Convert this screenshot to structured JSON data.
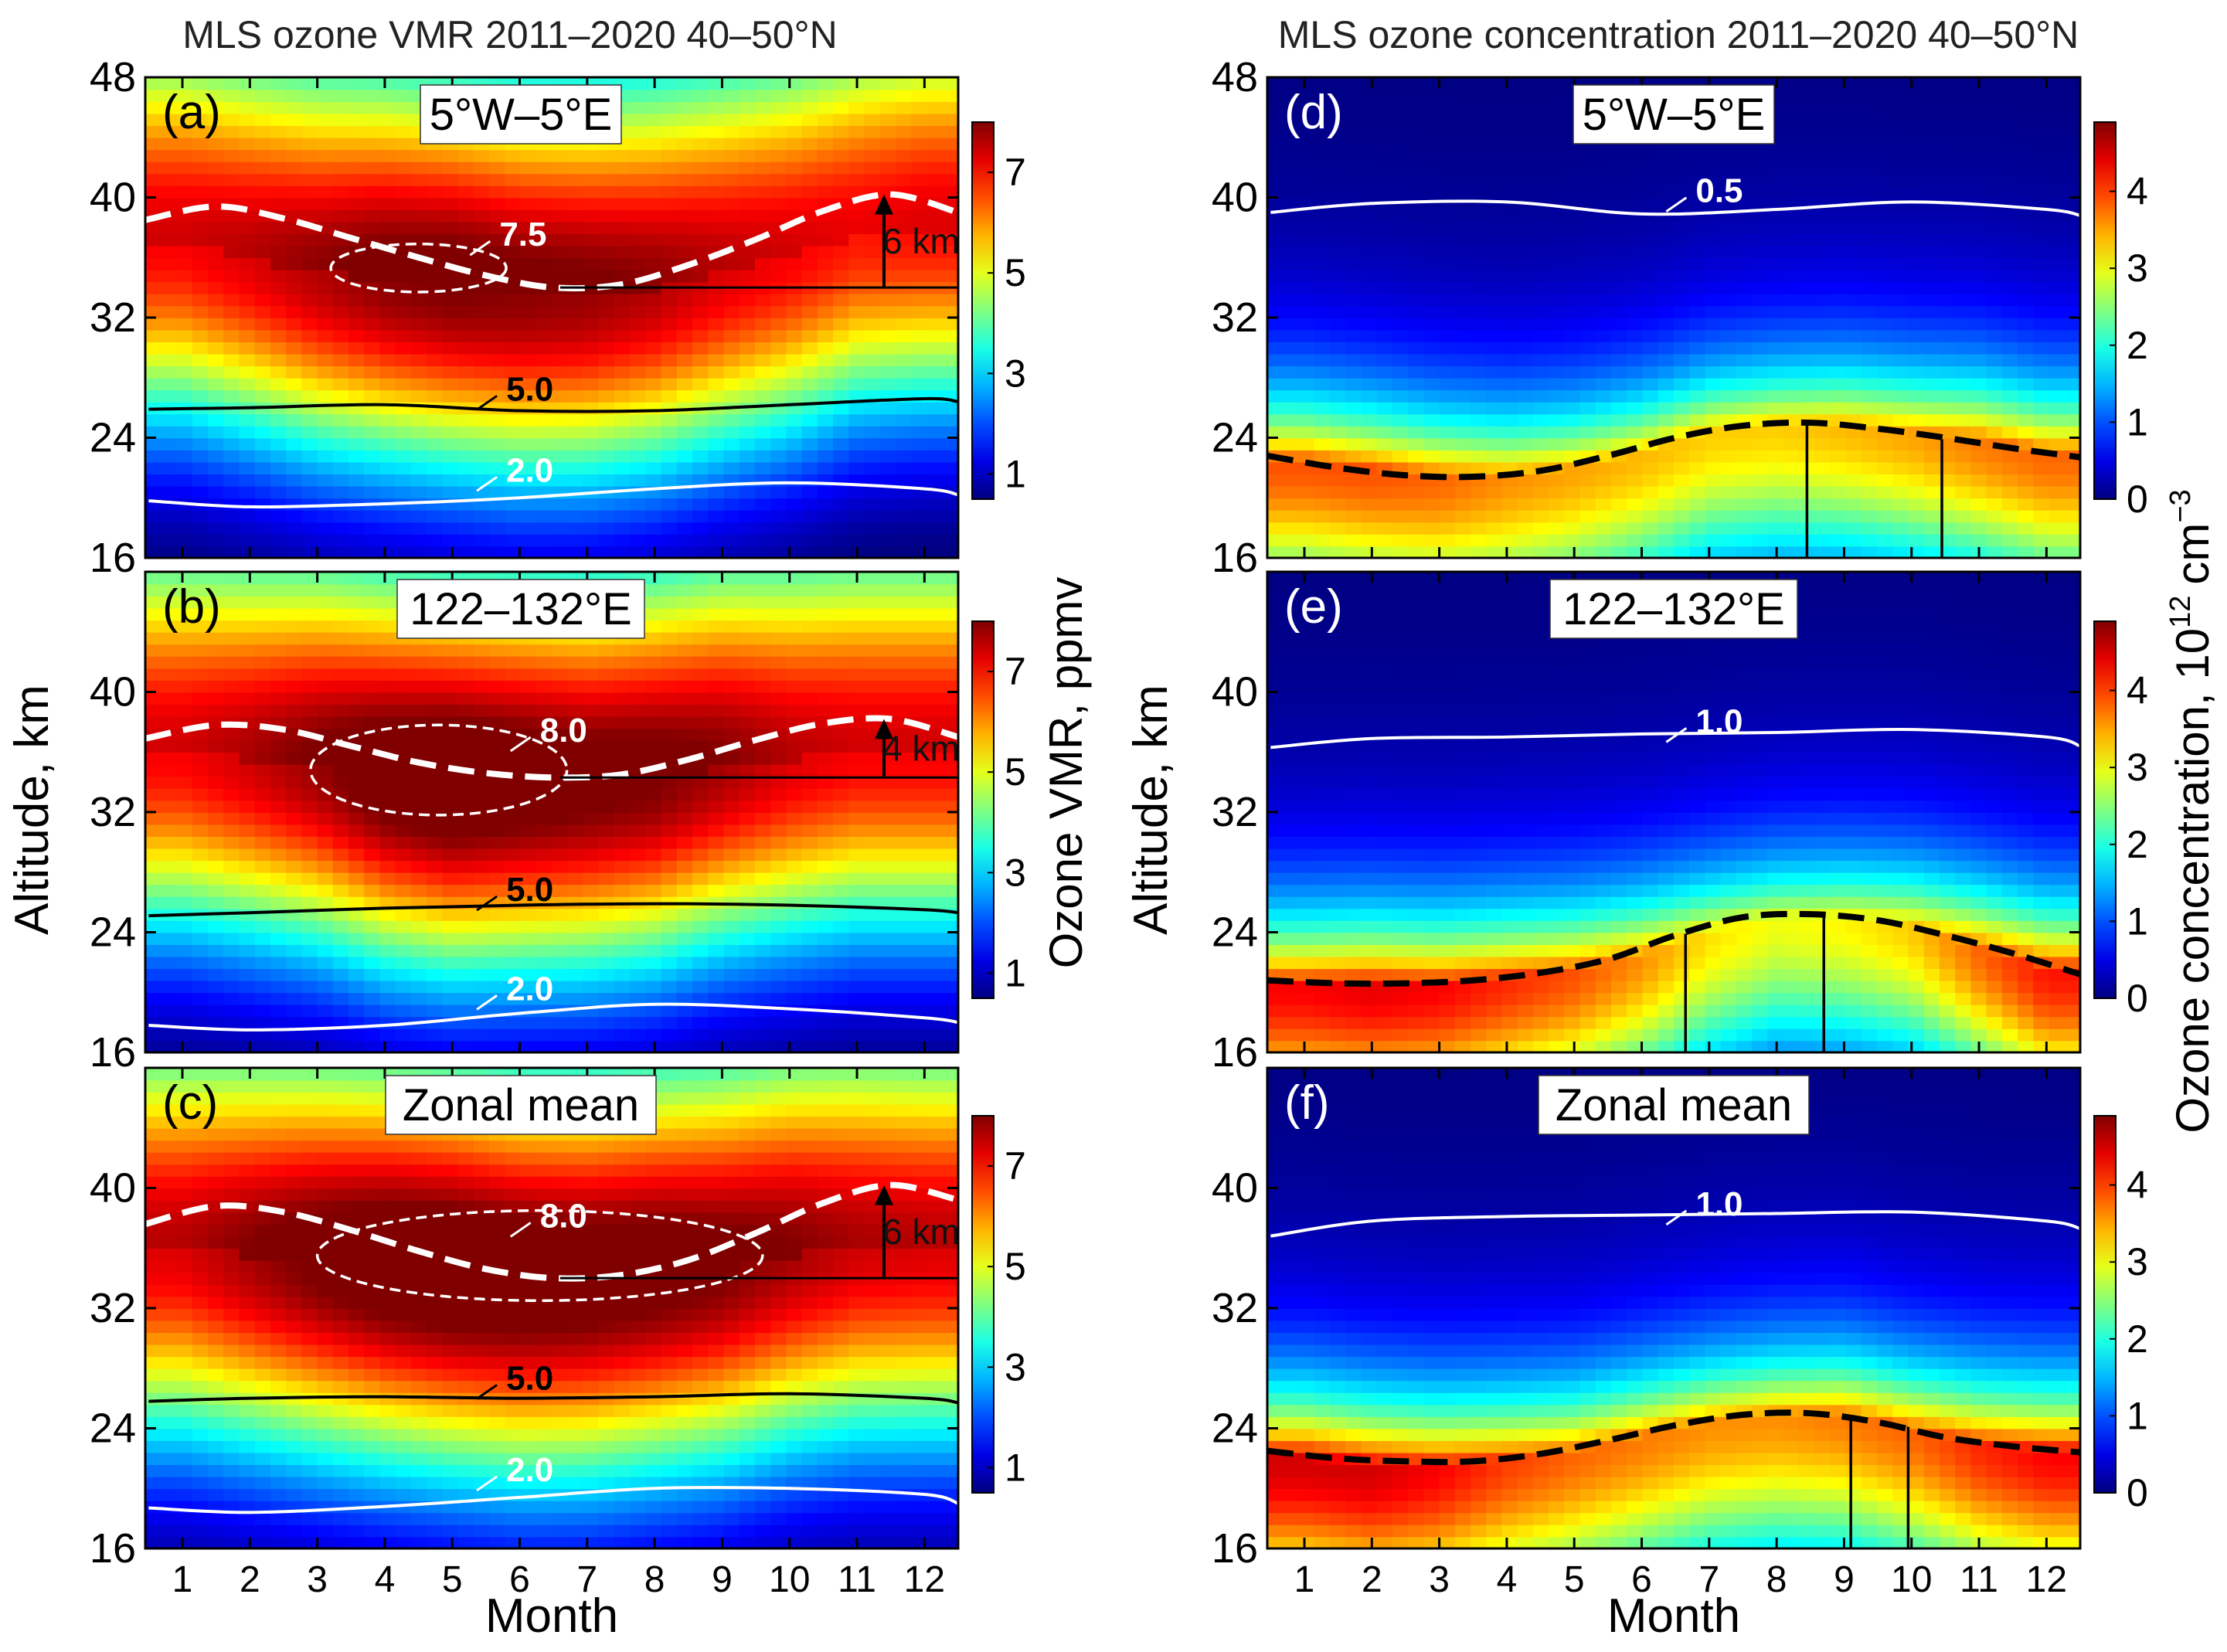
{
  "figure": {
    "left_title": "MLS ozone VMR  2011–2020  40–50°N",
    "right_title": "MLS ozone concentration 2011–2020 40–50°N",
    "left_ylabel": "Altitude, km",
    "right_ylabel": "Altitude, km",
    "left_xlabel": "Month",
    "right_xlabel": "Month",
    "left_cbar_label": "Ozone VMR, ppmv",
    "right_cbar_label": "Ozone concentration, 10",
    "right_cbar_exp": "12",
    "right_cbar_unit": "cm",
    "right_cbar_unit_exp": "−3"
  },
  "chart_data": [
    {
      "type": "heatmap",
      "panel": "(a)",
      "region": "5°W–5°E",
      "variable": "Ozone VMR",
      "unit": "ppmv",
      "xlabel": "Month",
      "ylabel": "Altitude, km",
      "xlim": [
        0.45,
        12.5
      ],
      "ylim": [
        16,
        48
      ],
      "xticks": [
        1,
        2,
        3,
        4,
        5,
        6,
        7,
        8,
        9,
        10,
        11,
        12
      ],
      "yticks": [
        16,
        24,
        32,
        40,
        48
      ],
      "colorbar": {
        "min": 0.5,
        "max": 8.0,
        "ticks": [
          1,
          3,
          5,
          7
        ]
      },
      "field": {
        "kind": "vmr",
        "peak_alt": [
          37,
          36,
          35,
          34.5,
          34,
          33.5,
          33.5,
          34,
          35,
          36,
          37.5,
          38
        ],
        "peak_value": [
          7.0,
          7.2,
          7.5,
          7.8,
          7.9,
          7.8,
          7.7,
          7.5,
          7.2,
          7.0,
          6.8,
          6.9
        ],
        "width": 9
      },
      "contours": [
        {
          "label": "7.5",
          "color": "#ffffff",
          "style": "dashed",
          "kind": "closed",
          "center": [
            4.5,
            35.3
          ],
          "radii": [
            1.3,
            1.6
          ],
          "label_at": [
            5.7,
            37.5
          ]
        },
        {
          "label": "5.0",
          "color": "#000000",
          "style": "solid",
          "x": [
            0.5,
            2,
            4,
            6,
            8,
            10,
            12,
            12.5
          ],
          "y": [
            25.9,
            26.0,
            26.2,
            25.8,
            25.8,
            26.2,
            26.6,
            26.4
          ],
          "label_at": [
            5.8,
            27.2
          ]
        },
        {
          "label": "2.0",
          "color": "#ffffff",
          "style": "solid",
          "x": [
            0.5,
            2,
            4,
            6,
            8,
            10,
            12,
            12.5
          ],
          "y": [
            19.8,
            19.4,
            19.6,
            20.0,
            20.6,
            21.0,
            20.6,
            20.2
          ],
          "label_at": [
            5.8,
            21.8
          ]
        }
      ],
      "max_line": {
        "x": [
          0.45,
          1.5,
          2.5,
          3.5,
          4.5,
          5.5,
          6.5,
          7.5,
          8.5,
          9.5,
          10.5,
          11.5,
          12.5
        ],
        "y": [
          38.5,
          39.4,
          38.6,
          37.3,
          36.0,
          34.8,
          34.0,
          34.2,
          35.5,
          37.2,
          39.1,
          40.2,
          39.0
        ]
      },
      "reference_line": {
        "y": 34.0,
        "x_from": 6.6,
        "x_to": 12.5
      },
      "arrow": {
        "x": 11.4,
        "from": 34.0,
        "to": 40.2,
        "label": "6 km"
      }
    },
    {
      "type": "heatmap",
      "panel": "(b)",
      "region": "122–132°E",
      "variable": "Ozone VMR",
      "unit": "ppmv",
      "xlabel": "Month",
      "ylabel": "Altitude, km",
      "xlim": [
        0.45,
        12.5
      ],
      "ylim": [
        16,
        48
      ],
      "xticks": [
        1,
        2,
        3,
        4,
        5,
        6,
        7,
        8,
        9,
        10,
        11,
        12
      ],
      "yticks": [
        16,
        24,
        32,
        40,
        48
      ],
      "colorbar": {
        "min": 0.5,
        "max": 8.0,
        "ticks": [
          1,
          3,
          5,
          7
        ]
      },
      "field": {
        "kind": "vmr",
        "peak_alt": [
          36,
          35.5,
          35,
          34,
          33.5,
          33.5,
          33.5,
          34,
          35,
          35.5,
          36,
          36
        ],
        "peak_value": [
          7.0,
          7.3,
          7.7,
          8.2,
          8.4,
          8.2,
          8.0,
          7.9,
          7.6,
          7.2,
          7.0,
          7.0
        ],
        "width": 9
      },
      "contours": [
        {
          "label": "8.0",
          "color": "#ffffff",
          "style": "dashed",
          "kind": "closed",
          "center": [
            4.8,
            34.8
          ],
          "radii": [
            1.9,
            3.0
          ],
          "label_at": [
            6.3,
            37.4
          ]
        },
        {
          "label": "5.0",
          "color": "#000000",
          "style": "solid",
          "x": [
            0.5,
            2,
            4,
            6,
            8,
            10,
            12,
            12.5
          ],
          "y": [
            25.1,
            25.3,
            25.6,
            25.8,
            25.9,
            25.8,
            25.5,
            25.3
          ],
          "label_at": [
            5.8,
            26.8
          ]
        },
        {
          "label": "2.0",
          "color": "#ffffff",
          "style": "solid",
          "x": [
            0.5,
            2,
            4,
            6,
            8,
            10,
            12,
            12.5
          ],
          "y": [
            17.8,
            17.5,
            17.8,
            18.6,
            19.2,
            18.9,
            18.3,
            18.0
          ],
          "label_at": [
            5.8,
            20.2
          ]
        }
      ],
      "max_line": {
        "x": [
          0.45,
          1.5,
          2.5,
          3.5,
          4.5,
          5.5,
          6.5,
          7.5,
          8.5,
          9.5,
          10.5,
          11.5,
          12.5
        ],
        "y": [
          36.9,
          37.8,
          37.5,
          36.4,
          35.3,
          34.6,
          34.3,
          34.5,
          35.5,
          36.8,
          37.9,
          38.2,
          37.0
        ]
      },
      "reference_line": {
        "y": 34.3,
        "x_from": 6.6,
        "x_to": 12.5
      },
      "arrow": {
        "x": 11.4,
        "from": 34.3,
        "to": 38.2,
        "label": "4 km"
      }
    },
    {
      "type": "heatmap",
      "panel": "(c)",
      "region": "Zonal mean",
      "variable": "Ozone VMR",
      "unit": "ppmv",
      "xlabel": "Month",
      "ylabel": "Altitude, km",
      "xlim": [
        0.45,
        12.5
      ],
      "ylim": [
        16,
        48
      ],
      "xticks": [
        1,
        2,
        3,
        4,
        5,
        6,
        7,
        8,
        9,
        10,
        11,
        12
      ],
      "yticks": [
        16,
        24,
        32,
        40,
        48
      ],
      "colorbar": {
        "min": 0.5,
        "max": 8.0,
        "ticks": [
          1,
          3,
          5,
          7
        ]
      },
      "field": {
        "kind": "vmr",
        "peak_alt": [
          36,
          35.5,
          35,
          34.5,
          34,
          33.5,
          33.5,
          34,
          34.5,
          35.5,
          36,
          36
        ],
        "peak_value": [
          7.2,
          7.6,
          8.0,
          8.3,
          8.4,
          8.3,
          8.2,
          8.1,
          7.9,
          7.6,
          7.3,
          7.2
        ],
        "width": 9.5
      },
      "contours": [
        {
          "label": "8.0",
          "color": "#ffffff",
          "style": "dashed",
          "kind": "closed",
          "center": [
            6.3,
            35.5
          ],
          "radii": [
            3.3,
            3.0
          ],
          "label_at": [
            6.3,
            38.1
          ]
        },
        {
          "label": "5.0",
          "color": "#000000",
          "style": "solid",
          "x": [
            0.5,
            2,
            4,
            6,
            8,
            10,
            12,
            12.5
          ],
          "y": [
            25.8,
            26.0,
            26.1,
            26.0,
            26.1,
            26.3,
            26.0,
            25.7
          ],
          "label_at": [
            5.8,
            27.3
          ]
        },
        {
          "label": "2.0",
          "color": "#ffffff",
          "style": "solid",
          "x": [
            0.5,
            2,
            4,
            6,
            8,
            10,
            12,
            12.5
          ],
          "y": [
            18.7,
            18.4,
            18.8,
            19.4,
            20.0,
            20.0,
            19.6,
            19.0
          ],
          "label_at": [
            5.8,
            21.2
          ]
        }
      ],
      "max_line": {
        "x": [
          0.45,
          1.5,
          2.5,
          3.5,
          4.5,
          5.5,
          6.5,
          7.5,
          8.5,
          9.5,
          10.5,
          11.5,
          12.5
        ],
        "y": [
          37.6,
          38.8,
          38.4,
          37.2,
          35.8,
          34.6,
          34.0,
          34.2,
          35.2,
          37.0,
          39.0,
          40.2,
          39.2
        ]
      },
      "reference_line": {
        "y": 34.0,
        "x_from": 6.6,
        "x_to": 12.5
      },
      "arrow": {
        "x": 11.4,
        "from": 34.0,
        "to": 40.2,
        "label": "6 km"
      }
    },
    {
      "type": "heatmap",
      "panel": "(d)",
      "region": "5°W–5°E",
      "variable": "Ozone concentration",
      "unit": "10^12 cm^-3",
      "xlabel": "Month",
      "ylabel": "Altitude, km",
      "xlim": [
        0.45,
        12.5
      ],
      "ylim": [
        16,
        48
      ],
      "xticks": [
        1,
        2,
        3,
        4,
        5,
        6,
        7,
        8,
        9,
        10,
        11,
        12
      ],
      "yticks": [
        16,
        24,
        32,
        40,
        48
      ],
      "colorbar": {
        "min": 0,
        "max": 4.9,
        "ticks": [
          0,
          1,
          2,
          3,
          4
        ]
      },
      "field": {
        "kind": "conc",
        "peak_alt": [
          22.5,
          22,
          21.5,
          21.5,
          22,
          23,
          24.5,
          25,
          25,
          24.5,
          24,
          23
        ],
        "peak_value": [
          3.9,
          3.9,
          3.8,
          3.6,
          3.5,
          3.4,
          3.3,
          3.3,
          3.4,
          3.5,
          3.7,
          3.8
        ],
        "width": 7
      },
      "contours": [
        {
          "label": "0.5",
          "color": "#ffffff",
          "style": "solid",
          "x": [
            0.5,
            2,
            4,
            6,
            8,
            10,
            12,
            12.5
          ],
          "y": [
            39.0,
            39.6,
            39.7,
            38.9,
            39.2,
            39.7,
            39.2,
            38.8
          ],
          "label_at": [
            6.8,
            40.4
          ]
        }
      ],
      "max_line": {
        "x": [
          0.45,
          1.5,
          2.5,
          3.5,
          4.5,
          5.5,
          6.5,
          7.5,
          8.5,
          9.5,
          10.5,
          11.5,
          12.5
        ],
        "y": [
          22.8,
          22.0,
          21.5,
          21.4,
          21.8,
          22.8,
          24.0,
          24.8,
          25.0,
          24.6,
          24.0,
          23.3,
          22.7
        ]
      },
      "vertical_lines": [
        {
          "x": 8.45,
          "from": 16,
          "to": 25.0
        },
        {
          "x": 10.45,
          "from": 16,
          "to": 23.9
        }
      ]
    },
    {
      "type": "heatmap",
      "panel": "(e)",
      "region": "122–132°E",
      "variable": "Ozone concentration",
      "unit": "10^12 cm^-3",
      "xlabel": "Month",
      "ylabel": "Altitude, km",
      "xlim": [
        0.45,
        12.5
      ],
      "ylim": [
        16,
        48
      ],
      "xticks": [
        1,
        2,
        3,
        4,
        5,
        6,
        7,
        8,
        9,
        10,
        11,
        12
      ],
      "yticks": [
        16,
        24,
        32,
        40,
        48
      ],
      "colorbar": {
        "min": 0,
        "max": 4.9,
        "ticks": [
          0,
          1,
          2,
          3,
          4
        ]
      },
      "field": {
        "kind": "conc",
        "peak_alt": [
          20.5,
          20.5,
          20.5,
          21,
          21.5,
          22.5,
          24,
          25,
          25,
          24.5,
          23,
          21.5
        ],
        "peak_value": [
          4.3,
          4.4,
          4.3,
          4.1,
          3.9,
          3.6,
          3.2,
          3.0,
          3.1,
          3.3,
          3.8,
          4.2
        ],
        "width": 7
      },
      "contours": [
        {
          "label": "1.0",
          "color": "#ffffff",
          "style": "solid",
          "x": [
            0.5,
            2,
            4,
            6,
            8,
            10,
            12,
            12.5
          ],
          "y": [
            36.3,
            36.9,
            37.0,
            37.2,
            37.3,
            37.5,
            37.0,
            36.4
          ],
          "label_at": [
            6.8,
            38.0
          ]
        }
      ],
      "max_line": {
        "x": [
          0.45,
          1.5,
          2.5,
          3.5,
          4.5,
          5.5,
          6.5,
          7.5,
          8.5,
          9.5,
          10.5,
          11.5,
          12.5
        ],
        "y": [
          20.8,
          20.6,
          20.6,
          20.8,
          21.3,
          22.2,
          23.8,
          25.0,
          25.2,
          24.8,
          23.8,
          22.6,
          21.2
        ]
      },
      "vertical_lines": [
        {
          "x": 6.65,
          "from": 16,
          "to": 23.9
        },
        {
          "x": 8.7,
          "from": 16,
          "to": 25.1
        }
      ]
    },
    {
      "type": "heatmap",
      "panel": "(f)",
      "region": "Zonal mean",
      "variable": "Ozone concentration",
      "unit": "10^12 cm^-3",
      "xlabel": "Month",
      "ylabel": "Altitude, km",
      "xlim": [
        0.45,
        12.5
      ],
      "ylim": [
        16,
        48
      ],
      "xticks": [
        1,
        2,
        3,
        4,
        5,
        6,
        7,
        8,
        9,
        10,
        11,
        12
      ],
      "yticks": [
        16,
        24,
        32,
        40,
        48
      ],
      "colorbar": {
        "min": 0,
        "max": 4.9,
        "ticks": [
          0,
          1,
          2,
          3,
          4
        ]
      },
      "field": {
        "kind": "conc",
        "peak_alt": [
          22,
          21.5,
          21.5,
          22,
          22.5,
          23.5,
          24.5,
          25,
          25,
          24,
          23,
          22.5
        ],
        "peak_value": [
          4.5,
          4.5,
          4.3,
          4.0,
          3.8,
          3.7,
          3.6,
          3.6,
          3.7,
          3.8,
          4.1,
          4.3
        ],
        "width": 7.5
      },
      "contours": [
        {
          "label": "1.0",
          "color": "#ffffff",
          "style": "solid",
          "x": [
            0.5,
            2,
            4,
            6,
            8,
            10,
            12,
            12.5
          ],
          "y": [
            36.8,
            37.8,
            38.1,
            38.2,
            38.3,
            38.4,
            37.8,
            37.3
          ],
          "label_at": [
            6.8,
            38.9
          ]
        }
      ],
      "max_line": {
        "x": [
          0.45,
          1.5,
          2.5,
          3.5,
          4.5,
          5.5,
          6.5,
          7.5,
          8.5,
          9.5,
          10.5,
          11.5,
          12.5
        ],
        "y": [
          22.5,
          22.0,
          21.8,
          21.8,
          22.3,
          23.2,
          24.2,
          24.9,
          25.0,
          24.4,
          23.4,
          22.8,
          22.4
        ]
      },
      "vertical_lines": [
        {
          "x": 9.1,
          "from": 16,
          "to": 24.8
        },
        {
          "x": 9.95,
          "from": 16,
          "to": 24.1
        }
      ]
    }
  ]
}
